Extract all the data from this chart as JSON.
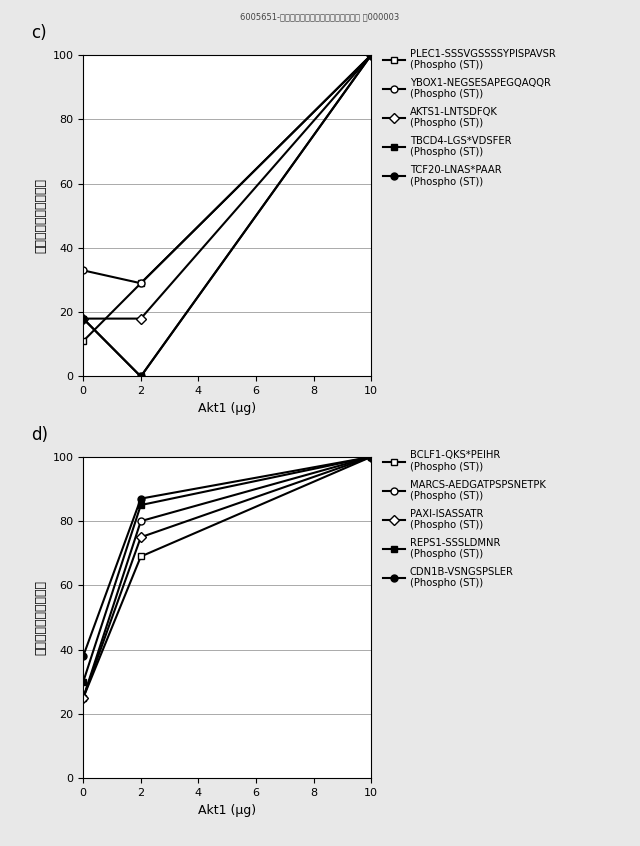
{
  "panel_c": {
    "label": "c)",
    "x": [
      0,
      2,
      10
    ],
    "series": [
      {
        "name": "PLEC1-SSSVGSSSSYPISPAVSR\n(Phospho (ST))",
        "y": [
          11,
          29,
          100
        ],
        "marker": "s",
        "fillstyle": "none",
        "color": "black",
        "linewidth": 1.5
      },
      {
        "name": "YBOX1-NEGSESAPEGQAQQR\n(Phospho (ST))",
        "y": [
          33,
          29,
          100
        ],
        "marker": "o",
        "fillstyle": "none",
        "color": "black",
        "linewidth": 1.5
      },
      {
        "name": "AKTS1-LNTSDFQK\n(Phospho (ST))",
        "y": [
          18,
          18,
          100
        ],
        "marker": "D",
        "fillstyle": "none",
        "color": "black",
        "linewidth": 1.5
      },
      {
        "name": "TBCD4-LGS*VDSFER\n(Phospho (ST))",
        "y": [
          18,
          0,
          100
        ],
        "marker": "s",
        "fillstyle": "full",
        "color": "black",
        "linewidth": 1.5
      },
      {
        "name": "TCF20-LNAS*PAAR\n(Phospho (ST))",
        "y": [
          18,
          0,
          100
        ],
        "marker": "o",
        "fillstyle": "full",
        "color": "black",
        "linewidth": 1.5
      }
    ],
    "xlabel": "Akt1 (μg)",
    "ylabel": "強度（最大強度の％）",
    "xlim": [
      0,
      10
    ],
    "ylim": [
      0,
      100
    ],
    "xticks": [
      0,
      2,
      4,
      6,
      8,
      10
    ],
    "yticks": [
      0,
      20,
      40,
      60,
      80,
      100
    ]
  },
  "panel_d": {
    "label": "d)",
    "x": [
      0,
      2,
      10
    ],
    "series": [
      {
        "name": "BCLF1-QKS*PEIHR\n(Phospho (ST))",
        "y": [
          25,
          69,
          100
        ],
        "marker": "s",
        "fillstyle": "none",
        "color": "black",
        "linewidth": 1.5
      },
      {
        "name": "MARCS-AEDGATPSPSNETPK\n(Phospho (ST))",
        "y": [
          25,
          80,
          100
        ],
        "marker": "o",
        "fillstyle": "none",
        "color": "black",
        "linewidth": 1.5
      },
      {
        "name": "PAXI-ISASSATR\n(Phospho (ST))",
        "y": [
          25,
          75,
          100
        ],
        "marker": "D",
        "fillstyle": "none",
        "color": "black",
        "linewidth": 1.5
      },
      {
        "name": "REPS1-SSSLDMNR\n(Phospho (ST))",
        "y": [
          30,
          85,
          100
        ],
        "marker": "s",
        "fillstyle": "full",
        "color": "black",
        "linewidth": 1.5
      },
      {
        "name": "CDN1B-VSNGSPSLER\n(Phospho (ST))",
        "y": [
          38,
          87,
          100
        ],
        "marker": "o",
        "fillstyle": "full",
        "color": "black",
        "linewidth": 1.5
      }
    ],
    "xlabel": "Akt1 (μg)",
    "ylabel": "強度（最大強度の％）",
    "xlim": [
      0,
      10
    ],
    "ylim": [
      0,
      100
    ],
    "xticks": [
      0,
      2,
      4,
      6,
      8,
      10
    ],
    "yticks": [
      0,
      20,
      40,
      60,
      80,
      100
    ]
  },
  "bg_color": "#e8e8e8",
  "plot_bg": "#ffffff",
  "grid_color": "#aaaaaa",
  "fontsize_label": 9,
  "fontsize_tick": 8,
  "fontsize_legend": 7.2,
  "fontsize_panel": 12,
  "top_text": "6005651-トランスフェラーゼの活性同定方法 図000003"
}
